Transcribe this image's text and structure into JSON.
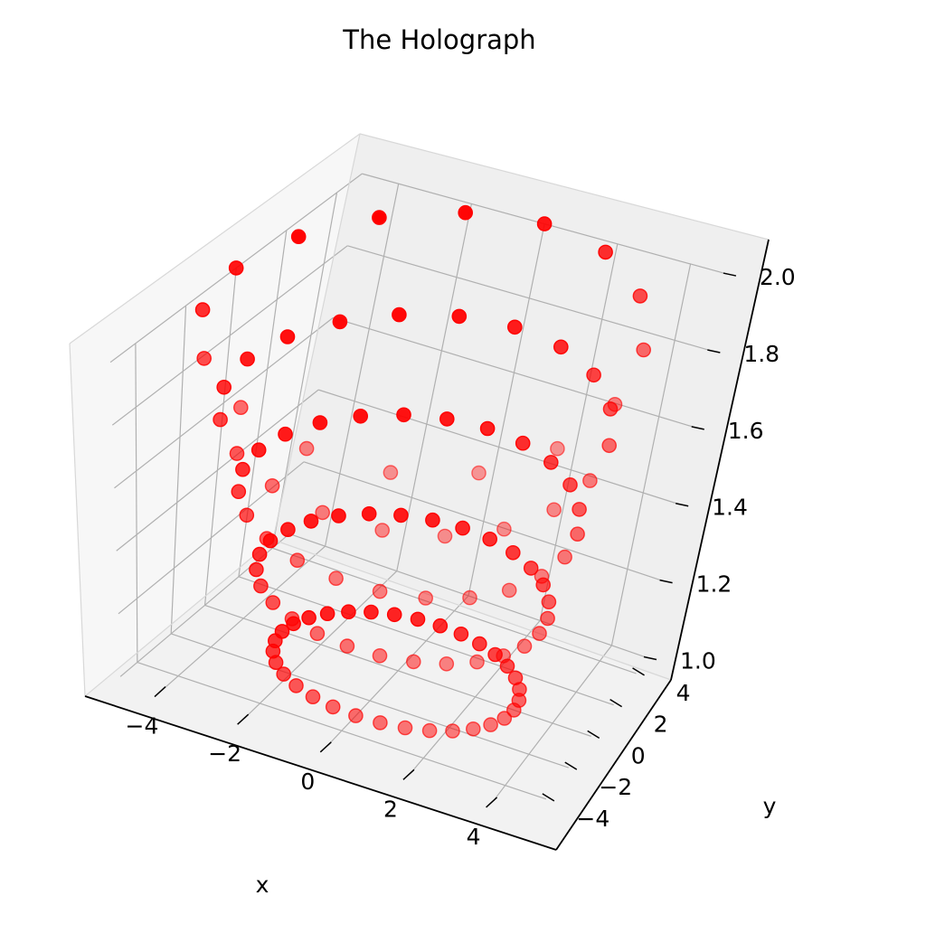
{
  "chart_data": {
    "type": "scatter",
    "projection": "3d",
    "title": "The Holograph",
    "xlabel": "x",
    "ylabel": "y",
    "zlabel": "",
    "xlim": [
      -5,
      5
    ],
    "ylim": [
      -5,
      5
    ],
    "zlim": [
      1.0,
      2.0
    ],
    "x_ticks": [
      "−4",
      "−2",
      "0",
      "2",
      "4"
    ],
    "y_ticks": [
      "−4",
      "−2",
      "0",
      "2",
      "4"
    ],
    "z_ticks": [
      "1.0",
      "1.2",
      "1.4",
      "1.6",
      "1.8",
      "2.0"
    ],
    "grid": true,
    "marker_color": "#ff0000",
    "series": [
      {
        "rings": [
          {
            "z": 1.0,
            "radius": 3.0,
            "points": 32
          },
          {
            "z": 1.25,
            "radius": 3.5,
            "points": 28
          },
          {
            "z": 1.5,
            "radius": 4.0,
            "points": 24
          },
          {
            "z": 1.75,
            "radius": 4.5,
            "points": 20
          },
          {
            "z": 2.0,
            "radius": 5.0,
            "points": 16
          }
        ]
      }
    ]
  }
}
